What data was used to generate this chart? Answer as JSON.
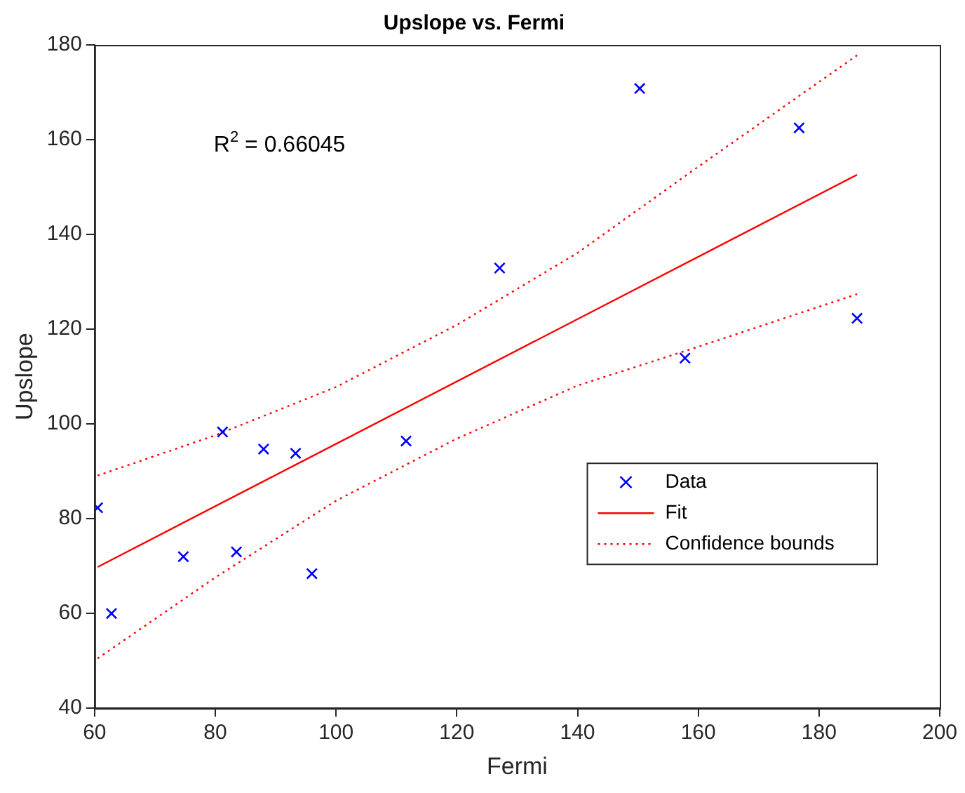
{
  "chart_data": {
    "type": "scatter",
    "title": "Upslope vs. Fermi",
    "xlabel": "Fermi",
    "ylabel": "Upslope",
    "xlim": [
      60,
      200
    ],
    "xticks": [
      60,
      80,
      100,
      120,
      140,
      160,
      180,
      200
    ],
    "ylim": [
      40,
      180
    ],
    "yticks": [
      40,
      60,
      80,
      100,
      120,
      140,
      160,
      180
    ],
    "grid": false,
    "legend": "bottom right",
    "annotations": [
      "R$^{2}$ = 0.66045"
    ],
    "series": [
      {
        "name": "Data",
        "type": "scatter",
        "color": "#0000ff",
        "marker": "cross",
        "x": [
          60.5,
          62.8,
          74.7,
          83.5,
          81.2,
          88.0,
          93.3,
          96.0,
          111.6,
          127.1,
          150.3,
          176.7,
          157.8,
          186.3
        ],
        "values": [
          82.3,
          60,
          72,
          73,
          98.3,
          94.7,
          93.8,
          68.4,
          96.4,
          132.9,
          170.8,
          162.5,
          113.9,
          122.3
        ]
      },
      {
        "name": "Fit",
        "type": "line",
        "color": "#ff0000",
        "line_style": "solid",
        "marker": "none",
        "x": [
          60.5,
          186.3
        ],
        "values": [
          69.8,
          152.6
        ]
      },
      {
        "name": "Confidence bounds",
        "type": "line",
        "color": "#ff0000",
        "line_style": "dotted",
        "marker": "none",
        "x": [
          60.5,
          80,
          100,
          120,
          140,
          160,
          186.3
        ],
        "values": [
          89.1,
          97.6,
          107.8,
          120.9,
          136.1,
          154.3,
          177.8
        ]
      },
      {
        "type": "line",
        "color": "#ff0000",
        "line_style": "dotted",
        "marker": "none",
        "x": [
          60.5,
          80,
          100,
          120,
          140,
          160,
          186.3
        ],
        "values": [
          50.5,
          67.6,
          83.8,
          96.9,
          108.1,
          116.3,
          127.4
        ]
      }
    ]
  }
}
